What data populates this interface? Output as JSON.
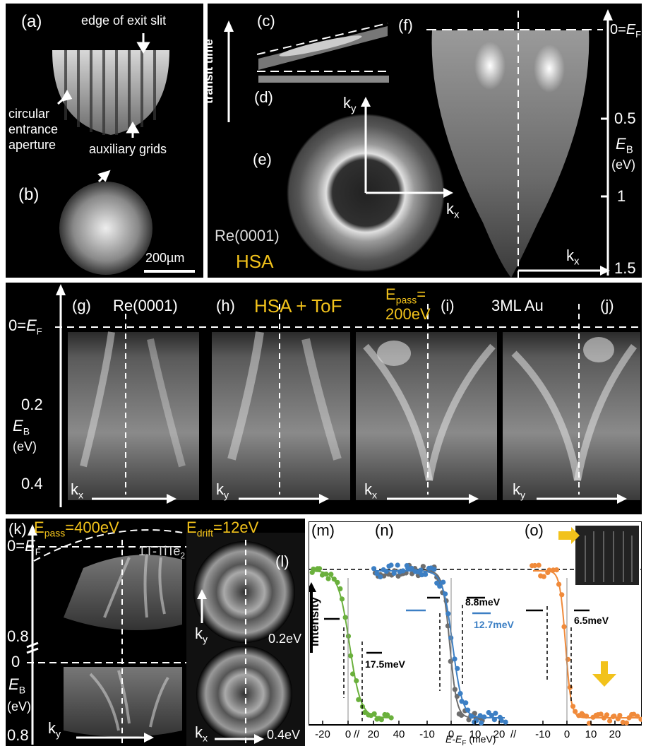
{
  "panel_a": {
    "label": "(a)",
    "exit_slit": "edge of exit slit",
    "entrance_line1": "circular",
    "entrance_line2": "entrance",
    "entrance_line3": "aperture",
    "grids": "auxiliary grids"
  },
  "panel_b": {
    "label": "(b)",
    "scale": "200µm"
  },
  "panel_cdef": {
    "c": "(c)",
    "d": "(d)",
    "e": "(e)",
    "f": "(f)",
    "transit": "transit time",
    "ky": "k",
    "ky_sub": "y",
    "kx": "k",
    "kx_sub": "x",
    "sample": "Re(0001)",
    "hsa": "HSA",
    "ef": "0=",
    "ef_e": "E",
    "ef_sub": "F",
    "eb_ticks": [
      "0.5",
      "1",
      "1.5"
    ],
    "eb": "E",
    "eb_sub": "B",
    "eb_unit": "(eV)",
    "fkx": "k",
    "fkx_sub": "x"
  },
  "panel_gj": {
    "g": "(g)",
    "h": "(h)",
    "i": "(i)",
    "j": "(j)",
    "re": "Re(0001)",
    "hsa_tof": "HSA + ToF",
    "epass_1": "E",
    "epass_sub": "pass",
    "epass_2": "=",
    "epass_val": "200eV",
    "au": "3ML Au",
    "ef": "0=",
    "ef_e": "E",
    "ef_sub": "F",
    "ticks": [
      "0.2",
      "0.4"
    ],
    "eb": "E",
    "eb_sub": "B",
    "eb_unit": "(eV)",
    "kx": "k",
    "kx_sub": "x",
    "ky": "k",
    "ky_sub": "y"
  },
  "panel_kl": {
    "k": "(k)",
    "l": "(l)",
    "epass": "E",
    "epass_sub": "pass",
    "epass_val": "=400eV",
    "edrift": "E",
    "edrift_sub": "drift",
    "edrift_val": "=12eV",
    "material": "1T-TiTe",
    "material_sub": "2",
    "ef": "0=",
    "ef_e": "E",
    "ef_sub": "F",
    "t08a": "0.8",
    "t0": "0",
    "t08b": "0.8",
    "eb": "E",
    "eb_sub": "B",
    "eb_unit": "(eV)",
    "ky": "k",
    "ky_sub": "y",
    "kx": "k",
    "kx_sub": "x",
    "e02": "0.2eV",
    "e04": "0.4eV"
  },
  "chart_data": {
    "type": "scatter",
    "panels": [
      {
        "label": "(m)",
        "width_label": "17.5meV",
        "color": "#6ab03c"
      },
      {
        "label": "(n)",
        "width_labels": [
          "8.8meV",
          "12.7meV"
        ],
        "colors": [
          "#3c7fc4",
          "#6d6d6d"
        ]
      },
      {
        "label": "(o)",
        "width_label": "6.5meV",
        "color": "#f08a3a"
      }
    ],
    "ylabel": "Intensity",
    "xlabel": "E-E",
    "xlabel_sub": "F",
    "xlabel_unit": " (meV)",
    "x_ticks": [
      "-20",
      "0",
      "20",
      "40",
      "-10",
      "0",
      "10",
      "20",
      "-10",
      "0",
      "10",
      "20"
    ]
  }
}
